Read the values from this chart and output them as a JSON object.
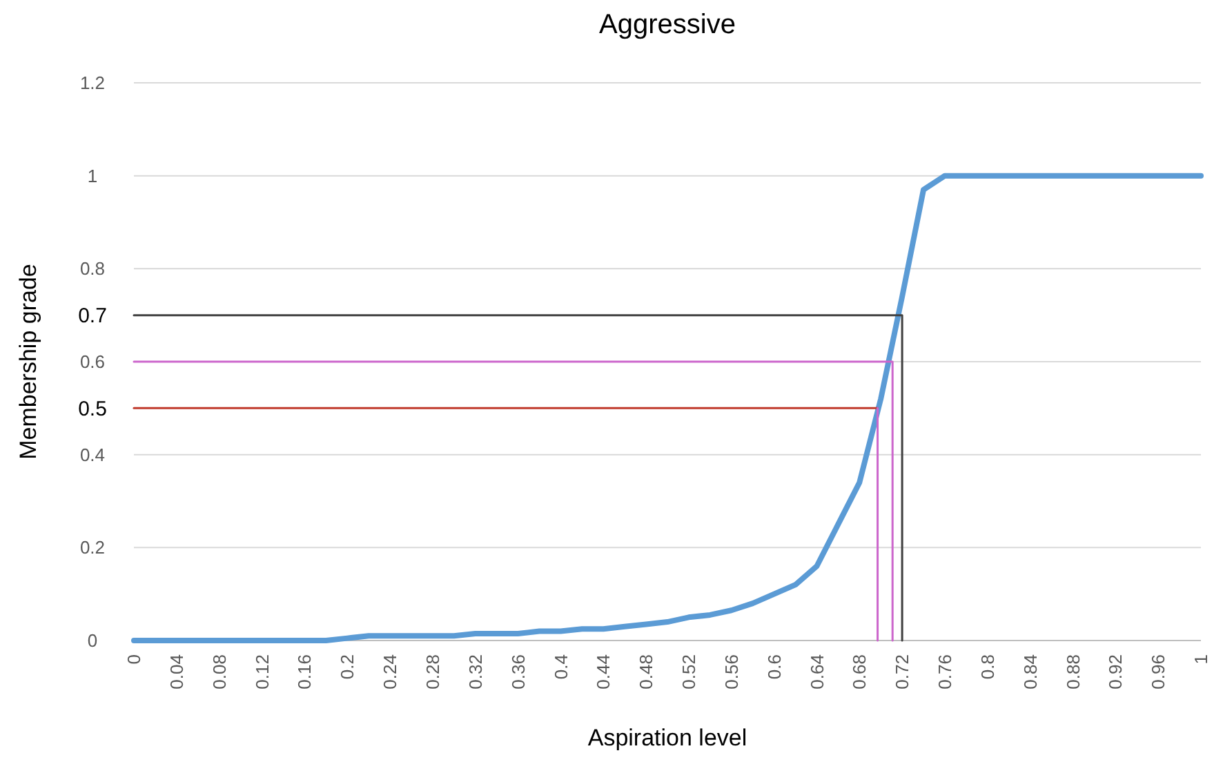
{
  "chart_data": {
    "type": "line",
    "title": "Aggressive",
    "xlabel": "Aspiration level",
    "ylabel": "Membership grade",
    "xlim": [
      0,
      1
    ],
    "xticks": [
      0,
      0.04,
      0.08,
      0.12,
      0.16,
      0.2,
      0.24,
      0.28,
      0.32,
      0.36,
      0.4,
      0.44,
      0.48,
      0.52,
      0.56,
      0.6,
      0.64,
      0.68,
      0.72,
      0.76,
      0.8,
      0.84,
      0.88,
      0.92,
      0.96,
      1
    ],
    "ylim": [
      0,
      1.2
    ],
    "yticks": [
      0,
      0.2,
      0.4,
      0.6,
      0.8,
      1,
      1.2
    ],
    "grid": "y",
    "marker": "none",
    "line_style": "solid",
    "series": [
      {
        "color": "#5b9bd5",
        "x": [
          0,
          0.02,
          0.04,
          0.06,
          0.08,
          0.1,
          0.12,
          0.14,
          0.16,
          0.18,
          0.2,
          0.22,
          0.24,
          0.26,
          0.28,
          0.3,
          0.32,
          0.34,
          0.36,
          0.38,
          0.4,
          0.42,
          0.44,
          0.46,
          0.48,
          0.5,
          0.52,
          0.54,
          0.56,
          0.58,
          0.6,
          0.62,
          0.64,
          0.66,
          0.68,
          0.7,
          0.72,
          0.74,
          0.76,
          0.78,
          0.8,
          0.82,
          0.84,
          0.86,
          0.88,
          0.9,
          0.92,
          0.94,
          0.96,
          0.98,
          1
        ],
        "values": [
          0,
          0,
          0,
          0,
          0,
          0,
          0,
          0,
          0,
          0,
          0.005,
          0.01,
          0.01,
          0.01,
          0.01,
          0.01,
          0.015,
          0.015,
          0.015,
          0.02,
          0.02,
          0.025,
          0.025,
          0.03,
          0.035,
          0.04,
          0.05,
          0.055,
          0.065,
          0.08,
          0.1,
          0.12,
          0.16,
          0.25,
          0.34,
          0.52,
          0.74,
          0.97,
          1,
          1,
          1,
          1,
          1,
          1,
          1,
          1,
          1,
          1,
          1,
          1,
          1
        ]
      },
      {
        "color": "#c0392b",
        "x": [
          0,
          0.697
        ],
        "values": [
          0.5,
          0.5
        ]
      },
      {
        "color": "#cc66cc",
        "x": [
          0.697,
          0.697
        ],
        "values": [
          0,
          0.5
        ]
      },
      {
        "color": "#cc66cc",
        "x": [
          0.711,
          0.711,
          0
        ],
        "values": [
          0,
          0.6,
          0.6
        ]
      },
      {
        "color": "#404040",
        "x": [
          0.72,
          0.72,
          0
        ],
        "values": [
          0,
          0.7,
          0.7
        ]
      }
    ],
    "annotations": [
      {
        "text": "0.5",
        "x": 0,
        "y": 0.5
      },
      {
        "text": "0.7",
        "x": 0,
        "y": 0.7
      }
    ]
  }
}
